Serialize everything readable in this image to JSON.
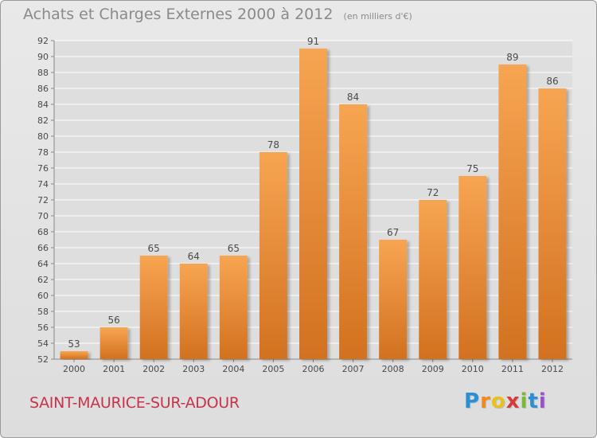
{
  "header": {
    "title": "Achats et Charges Externes 2000 à 2012",
    "subtitle": "(en milliers d'€)"
  },
  "footer": {
    "city": "SAINT-MAURICE-SUR-ADOUR",
    "logo_text": "Proxiti",
    "logo_letters": [
      "P",
      "r",
      "o",
      "x",
      "i",
      "t",
      "i"
    ],
    "logo_colors": [
      "#2a8fd4",
      "#f08a1c",
      "#e8c21a",
      "#d63a3a",
      "#7ab83a",
      "#2a8fd4",
      "#9a4fc8"
    ]
  },
  "colors": {
    "bar_top": "#f7a552",
    "bar_bottom": "#d2711f",
    "city": "#c9324a",
    "text": "#4a4a4a",
    "axis": "#888888",
    "grid": "#ffffff"
  },
  "chart_data": {
    "type": "bar",
    "title": "Achats et Charges Externes 2000 à 2012",
    "subtitle": "(en milliers d'€)",
    "categories": [
      "2000",
      "2001",
      "2002",
      "2003",
      "2004",
      "2005",
      "2006",
      "2007",
      "2008",
      "2009",
      "2010",
      "2011",
      "2012"
    ],
    "values": [
      53,
      56,
      65,
      64,
      65,
      78,
      91,
      84,
      67,
      72,
      75,
      89,
      86
    ],
    "ylim": [
      52,
      92
    ],
    "yticks": [
      52,
      54,
      56,
      58,
      60,
      62,
      64,
      66,
      68,
      70,
      72,
      74,
      76,
      78,
      80,
      82,
      84,
      86,
      88,
      90,
      92
    ],
    "grid": true,
    "data_labels": true
  }
}
